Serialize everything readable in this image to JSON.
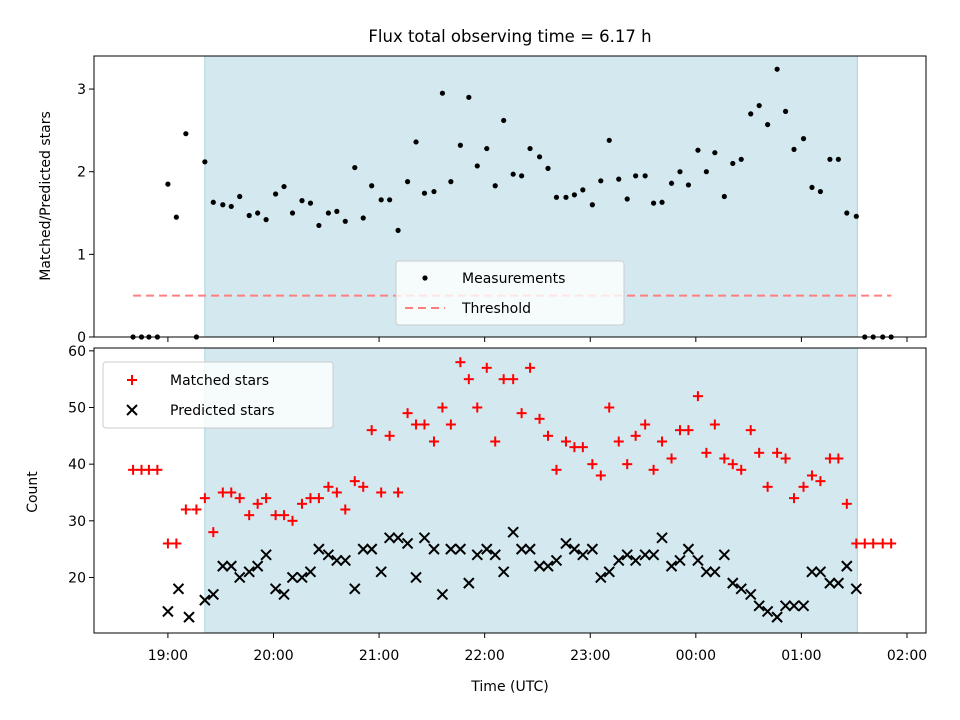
{
  "title": "Flux total observing time = 6.17 h",
  "colors": {
    "shade": "#d3e9ef",
    "shade_edge": "#a8d4dc",
    "threshold": "#ff7f7f",
    "matched": "#ff0000",
    "predicted": "#000000",
    "measurement": "#000000"
  },
  "chart_data": [
    {
      "type": "scatter",
      "ylabel": "Matched/Predicted stars",
      "ylim": [
        0,
        3.4
      ],
      "yticks": [
        0,
        1,
        2,
        3
      ],
      "xlim": [
        -0.7,
        7.18
      ],
      "x_tick_positions": [
        0,
        1,
        2,
        3,
        4,
        5,
        6,
        7
      ],
      "shaded_interval": [
        0.35,
        6.53
      ],
      "legend": {
        "placement": "lower center",
        "entries": [
          "Measurements",
          "Threshold"
        ]
      },
      "threshold": {
        "name": "Threshold",
        "y": 0.5,
        "x_range": [
          -0.33,
          6.85
        ]
      },
      "series": [
        {
          "name": "Measurements",
          "points": [
            [
              -0.33,
              0
            ],
            [
              -0.25,
              0
            ],
            [
              -0.18,
              0
            ],
            [
              -0.1,
              0
            ],
            [
              0.0,
              1.85
            ],
            [
              0.08,
              1.45
            ],
            [
              0.17,
              2.46
            ],
            [
              0.27,
              0
            ],
            [
              0.35,
              2.12
            ],
            [
              0.43,
              1.63
            ],
            [
              0.52,
              1.6
            ],
            [
              0.6,
              1.58
            ],
            [
              0.68,
              1.7
            ],
            [
              0.77,
              1.47
            ],
            [
              0.85,
              1.5
            ],
            [
              0.93,
              1.42
            ],
            [
              1.02,
              1.73
            ],
            [
              1.1,
              1.82
            ],
            [
              1.18,
              1.5
            ],
            [
              1.27,
              1.65
            ],
            [
              1.35,
              1.62
            ],
            [
              1.43,
              1.35
            ],
            [
              1.52,
              1.5
            ],
            [
              1.6,
              1.52
            ],
            [
              1.68,
              1.4
            ],
            [
              1.77,
              2.05
            ],
            [
              1.85,
              1.44
            ],
            [
              1.93,
              1.83
            ],
            [
              2.02,
              1.66
            ],
            [
              2.1,
              1.66
            ],
            [
              2.18,
              1.29
            ],
            [
              2.27,
              1.88
            ],
            [
              2.35,
              2.36
            ],
            [
              2.43,
              1.74
            ],
            [
              2.52,
              1.76
            ],
            [
              2.6,
              2.95
            ],
            [
              2.68,
              1.88
            ],
            [
              2.77,
              2.32
            ],
            [
              2.85,
              2.9
            ],
            [
              2.93,
              2.07
            ],
            [
              3.02,
              2.28
            ],
            [
              3.1,
              1.83
            ],
            [
              3.18,
              2.62
            ],
            [
              3.27,
              1.97
            ],
            [
              3.35,
              1.95
            ],
            [
              3.43,
              2.28
            ],
            [
              3.52,
              2.18
            ],
            [
              3.6,
              2.04
            ],
            [
              3.68,
              1.69
            ],
            [
              3.77,
              1.69
            ],
            [
              3.85,
              1.72
            ],
            [
              3.93,
              1.78
            ],
            [
              4.02,
              1.6
            ],
            [
              4.1,
              1.89
            ],
            [
              4.18,
              2.38
            ],
            [
              4.27,
              1.91
            ],
            [
              4.35,
              1.67
            ],
            [
              4.43,
              1.95
            ],
            [
              4.52,
              1.95
            ],
            [
              4.6,
              1.62
            ],
            [
              4.68,
              1.63
            ],
            [
              4.77,
              1.86
            ],
            [
              4.85,
              2.0
            ],
            [
              4.93,
              1.84
            ],
            [
              5.02,
              2.26
            ],
            [
              5.1,
              2.0
            ],
            [
              5.18,
              2.23
            ],
            [
              5.27,
              1.7
            ],
            [
              5.35,
              2.1
            ],
            [
              5.43,
              2.15
            ],
            [
              5.52,
              2.7
            ],
            [
              5.6,
              2.8
            ],
            [
              5.68,
              2.57
            ],
            [
              5.77,
              3.24
            ],
            [
              5.85,
              2.73
            ],
            [
              5.93,
              2.27
            ],
            [
              6.02,
              2.4
            ],
            [
              6.1,
              1.81
            ],
            [
              6.18,
              1.76
            ],
            [
              6.27,
              2.15
            ],
            [
              6.35,
              2.15
            ],
            [
              6.43,
              1.5
            ],
            [
              6.52,
              1.46
            ],
            [
              6.6,
              0
            ],
            [
              6.68,
              0
            ],
            [
              6.77,
              0
            ],
            [
              6.85,
              0
            ]
          ]
        }
      ]
    },
    {
      "type": "scatter",
      "xlabel": "Time (UTC)",
      "ylabel": "Count",
      "ylim": [
        10.2,
        60.5
      ],
      "yticks": [
        20,
        30,
        40,
        50,
        60
      ],
      "xlim": [
        -0.7,
        7.18
      ],
      "x_tick_positions": [
        0,
        1,
        2,
        3,
        4,
        5,
        6,
        7
      ],
      "x_tick_labels": [
        "19:00",
        "20:00",
        "21:00",
        "22:00",
        "23:00",
        "00:00",
        "01:00",
        "02:00"
      ],
      "shaded_interval": [
        0.35,
        6.53
      ],
      "legend": {
        "placement": "upper left",
        "entries": [
          "Matched stars",
          "Predicted stars"
        ]
      },
      "series": [
        {
          "name": "Matched stars",
          "marker": "plus",
          "points": [
            [
              -0.33,
              39
            ],
            [
              -0.25,
              39
            ],
            [
              -0.18,
              39
            ],
            [
              -0.1,
              39
            ],
            [
              0.0,
              26
            ],
            [
              0.08,
              26
            ],
            [
              0.17,
              32
            ],
            [
              0.27,
              32
            ],
            [
              0.35,
              34
            ],
            [
              0.43,
              28
            ],
            [
              0.52,
              35
            ],
            [
              0.6,
              35
            ],
            [
              0.68,
              34
            ],
            [
              0.77,
              31
            ],
            [
              0.85,
              33
            ],
            [
              0.93,
              34
            ],
            [
              1.02,
              31
            ],
            [
              1.1,
              31
            ],
            [
              1.18,
              30
            ],
            [
              1.27,
              33
            ],
            [
              1.35,
              34
            ],
            [
              1.43,
              34
            ],
            [
              1.52,
              36
            ],
            [
              1.6,
              35
            ],
            [
              1.68,
              32
            ],
            [
              1.77,
              37
            ],
            [
              1.85,
              36
            ],
            [
              1.93,
              46
            ],
            [
              2.02,
              35
            ],
            [
              2.1,
              45
            ],
            [
              2.18,
              35
            ],
            [
              2.27,
              49
            ],
            [
              2.35,
              47
            ],
            [
              2.43,
              47
            ],
            [
              2.52,
              44
            ],
            [
              2.6,
              50
            ],
            [
              2.68,
              47
            ],
            [
              2.77,
              58
            ],
            [
              2.85,
              55
            ],
            [
              2.93,
              50
            ],
            [
              3.02,
              57
            ],
            [
              3.1,
              44
            ],
            [
              3.18,
              55
            ],
            [
              3.27,
              55
            ],
            [
              3.35,
              49
            ],
            [
              3.43,
              57
            ],
            [
              3.52,
              48
            ],
            [
              3.6,
              45
            ],
            [
              3.68,
              39
            ],
            [
              3.77,
              44
            ],
            [
              3.85,
              43
            ],
            [
              3.93,
              43
            ],
            [
              4.02,
              40
            ],
            [
              4.1,
              38
            ],
            [
              4.18,
              50
            ],
            [
              4.27,
              44
            ],
            [
              4.35,
              40
            ],
            [
              4.43,
              45
            ],
            [
              4.52,
              47
            ],
            [
              4.6,
              39
            ],
            [
              4.68,
              44
            ],
            [
              4.77,
              41
            ],
            [
              4.85,
              46
            ],
            [
              4.93,
              46
            ],
            [
              5.02,
              52
            ],
            [
              5.1,
              42
            ],
            [
              5.18,
              47
            ],
            [
              5.27,
              41
            ],
            [
              5.35,
              40
            ],
            [
              5.43,
              39
            ],
            [
              5.52,
              46
            ],
            [
              5.6,
              42
            ],
            [
              5.68,
              36
            ],
            [
              5.77,
              42
            ],
            [
              5.85,
              41
            ],
            [
              5.93,
              34
            ],
            [
              6.02,
              36
            ],
            [
              6.1,
              38
            ],
            [
              6.18,
              37
            ],
            [
              6.27,
              41
            ],
            [
              6.35,
              41
            ],
            [
              6.43,
              33
            ],
            [
              6.52,
              26
            ],
            [
              6.6,
              26
            ],
            [
              6.68,
              26
            ],
            [
              6.77,
              26
            ],
            [
              6.85,
              26
            ]
          ]
        },
        {
          "name": "Predicted stars",
          "marker": "x",
          "points": [
            [
              0.0,
              14
            ],
            [
              0.1,
              18
            ],
            [
              0.2,
              13
            ],
            [
              0.35,
              16
            ],
            [
              0.43,
              17
            ],
            [
              0.52,
              22
            ],
            [
              0.6,
              22
            ],
            [
              0.68,
              20
            ],
            [
              0.77,
              21
            ],
            [
              0.85,
              22
            ],
            [
              0.93,
              24
            ],
            [
              1.02,
              18
            ],
            [
              1.1,
              17
            ],
            [
              1.18,
              20
            ],
            [
              1.27,
              20
            ],
            [
              1.35,
              21
            ],
            [
              1.43,
              25
            ],
            [
              1.52,
              24
            ],
            [
              1.6,
              23
            ],
            [
              1.68,
              23
            ],
            [
              1.77,
              18
            ],
            [
              1.85,
              25
            ],
            [
              1.93,
              25
            ],
            [
              2.02,
              21
            ],
            [
              2.1,
              27
            ],
            [
              2.18,
              27
            ],
            [
              2.27,
              26
            ],
            [
              2.35,
              20
            ],
            [
              2.43,
              27
            ],
            [
              2.52,
              25
            ],
            [
              2.6,
              17
            ],
            [
              2.68,
              25
            ],
            [
              2.77,
              25
            ],
            [
              2.85,
              19
            ],
            [
              2.93,
              24
            ],
            [
              3.02,
              25
            ],
            [
              3.1,
              24
            ],
            [
              3.18,
              21
            ],
            [
              3.27,
              28
            ],
            [
              3.35,
              25
            ],
            [
              3.43,
              25
            ],
            [
              3.52,
              22
            ],
            [
              3.6,
              22
            ],
            [
              3.68,
              23
            ],
            [
              3.77,
              26
            ],
            [
              3.85,
              25
            ],
            [
              3.93,
              24
            ],
            [
              4.02,
              25
            ],
            [
              4.1,
              20
            ],
            [
              4.18,
              21
            ],
            [
              4.27,
              23
            ],
            [
              4.35,
              24
            ],
            [
              4.43,
              23
            ],
            [
              4.52,
              24
            ],
            [
              4.6,
              24
            ],
            [
              4.68,
              27
            ],
            [
              4.77,
              22
            ],
            [
              4.85,
              23
            ],
            [
              4.93,
              25
            ],
            [
              5.02,
              23
            ],
            [
              5.1,
              21
            ],
            [
              5.18,
              21
            ],
            [
              5.27,
              24
            ],
            [
              5.35,
              19
            ],
            [
              5.43,
              18
            ],
            [
              5.52,
              17
            ],
            [
              5.6,
              15
            ],
            [
              5.68,
              14
            ],
            [
              5.77,
              13
            ],
            [
              5.85,
              15
            ],
            [
              5.93,
              15
            ],
            [
              6.02,
              15
            ],
            [
              6.1,
              21
            ],
            [
              6.18,
              21
            ],
            [
              6.27,
              19
            ],
            [
              6.35,
              19
            ],
            [
              6.43,
              22
            ],
            [
              6.52,
              18
            ]
          ]
        }
      ]
    }
  ]
}
